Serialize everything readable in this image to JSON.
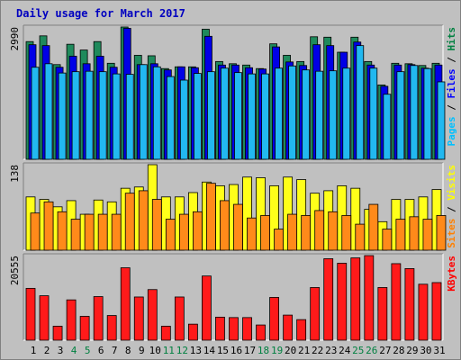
{
  "chart_data": {
    "type": "bar",
    "title": "Daily usage for March 2017",
    "categories": [
      "1",
      "2",
      "3",
      "4",
      "5",
      "6",
      "7",
      "8",
      "9",
      "10",
      "11",
      "12",
      "13",
      "14",
      "15",
      "16",
      "17",
      "18",
      "19",
      "20",
      "21",
      "22",
      "23",
      "24",
      "25",
      "26",
      "27",
      "28",
      "29",
      "30",
      "31"
    ],
    "weekend_days": [
      "4",
      "5",
      "11",
      "12",
      "18",
      "19",
      "25",
      "26"
    ],
    "panels": [
      {
        "id": "hits-files-pages",
        "ymax_label": "2990",
        "ymax": 2990,
        "side_label_parts": [
          {
            "text": "Pages",
            "color": "#00c0ff"
          },
          {
            "text": " / ",
            "color": "#000000"
          },
          {
            "text": "Files",
            "color": "#0000ff"
          },
          {
            "text": " / ",
            "color": "#000000"
          },
          {
            "text": "Hits",
            "color": "#008040"
          }
        ],
        "series": [
          {
            "key": "hits",
            "color": "#1f8a5c",
            "values": [
              2660,
              2790,
              2140,
              2600,
              2470,
              2660,
              2170,
              2990,
              2350,
              2340,
              2050,
              2090,
              2090,
              2940,
              2210,
              2160,
              2130,
              2050,
              2610,
              2350,
              2210,
              2770,
              2760,
              2420,
              2760,
              2210,
              1680,
              2170,
              2160,
              2120,
              2170
            ]
          },
          {
            "key": "files",
            "color": "#0000e6",
            "values": [
              2590,
              2570,
              2080,
              2330,
              2160,
              2330,
              2080,
              2960,
              2140,
              2160,
              2020,
              2090,
              2070,
              2780,
              2130,
              2130,
              2070,
              2040,
              2540,
              2200,
              2120,
              2590,
              2570,
              2420,
              2650,
              2130,
              1650,
              2130,
              2140,
              2060,
              2130
            ]
          },
          {
            "key": "pages",
            "color": "#22b8f0",
            "values": [
              2080,
              2160,
              1950,
              1980,
              1990,
              1980,
              1930,
              1920,
              2140,
              2090,
              1870,
              1790,
              1940,
              1980,
              2060,
              1960,
              1930,
              1930,
              2060,
              2110,
              2020,
              1990,
              2000,
              2060,
              2570,
              2060,
              1470,
              1980,
              2120,
              2050,
              1750
            ]
          }
        ]
      },
      {
        "id": "visits-sites",
        "ymax_label": "138",
        "ymax": 138,
        "side_label_parts": [
          {
            "text": "Sites",
            "color": "#ff8000"
          },
          {
            "text": " / ",
            "color": "#000000"
          },
          {
            "text": "Visits",
            "color": "#ffff00"
          }
        ],
        "series": [
          {
            "key": "visits",
            "color": "#ffff1a",
            "values": [
              86,
              82,
              70,
              80,
              58,
              81,
              78,
              100,
              102,
              138,
              86,
              86,
              93,
              110,
              104,
              106,
              118,
              117,
              104,
              118,
              114,
              92,
              96,
              104,
              100,
              66,
              46,
              82,
              82,
              86,
              98
            ]
          },
          {
            "key": "sites",
            "color": "#ff8a1a",
            "values": [
              60,
              78,
              62,
              50,
              58,
              58,
              58,
              92,
              96,
              82,
              50,
              58,
              62,
              108,
              80,
              74,
              52,
              56,
              34,
              58,
              56,
              64,
              62,
              56,
              42,
              74,
              34,
              50,
              54,
              50,
              56
            ]
          }
        ]
      },
      {
        "id": "kbytes",
        "ymax_label": "20555",
        "ymax": 20555,
        "side_label_parts": [
          {
            "text": "KBytes",
            "color": "#ff0000"
          }
        ],
        "series": [
          {
            "key": "kbytes",
            "color": "#ff1a1a",
            "values": [
              12600,
              10800,
              3400,
              9800,
              5800,
              10600,
              6000,
              17600,
              10500,
              12300,
              3400,
              10500,
              3900,
              15600,
              5600,
              5500,
              5500,
              3700,
              10400,
              6100,
              5000,
              12800,
              19800,
              18700,
              20000,
              20555,
              12800,
              18600,
              17400,
              13600,
              14000
            ]
          }
        ]
      }
    ]
  }
}
